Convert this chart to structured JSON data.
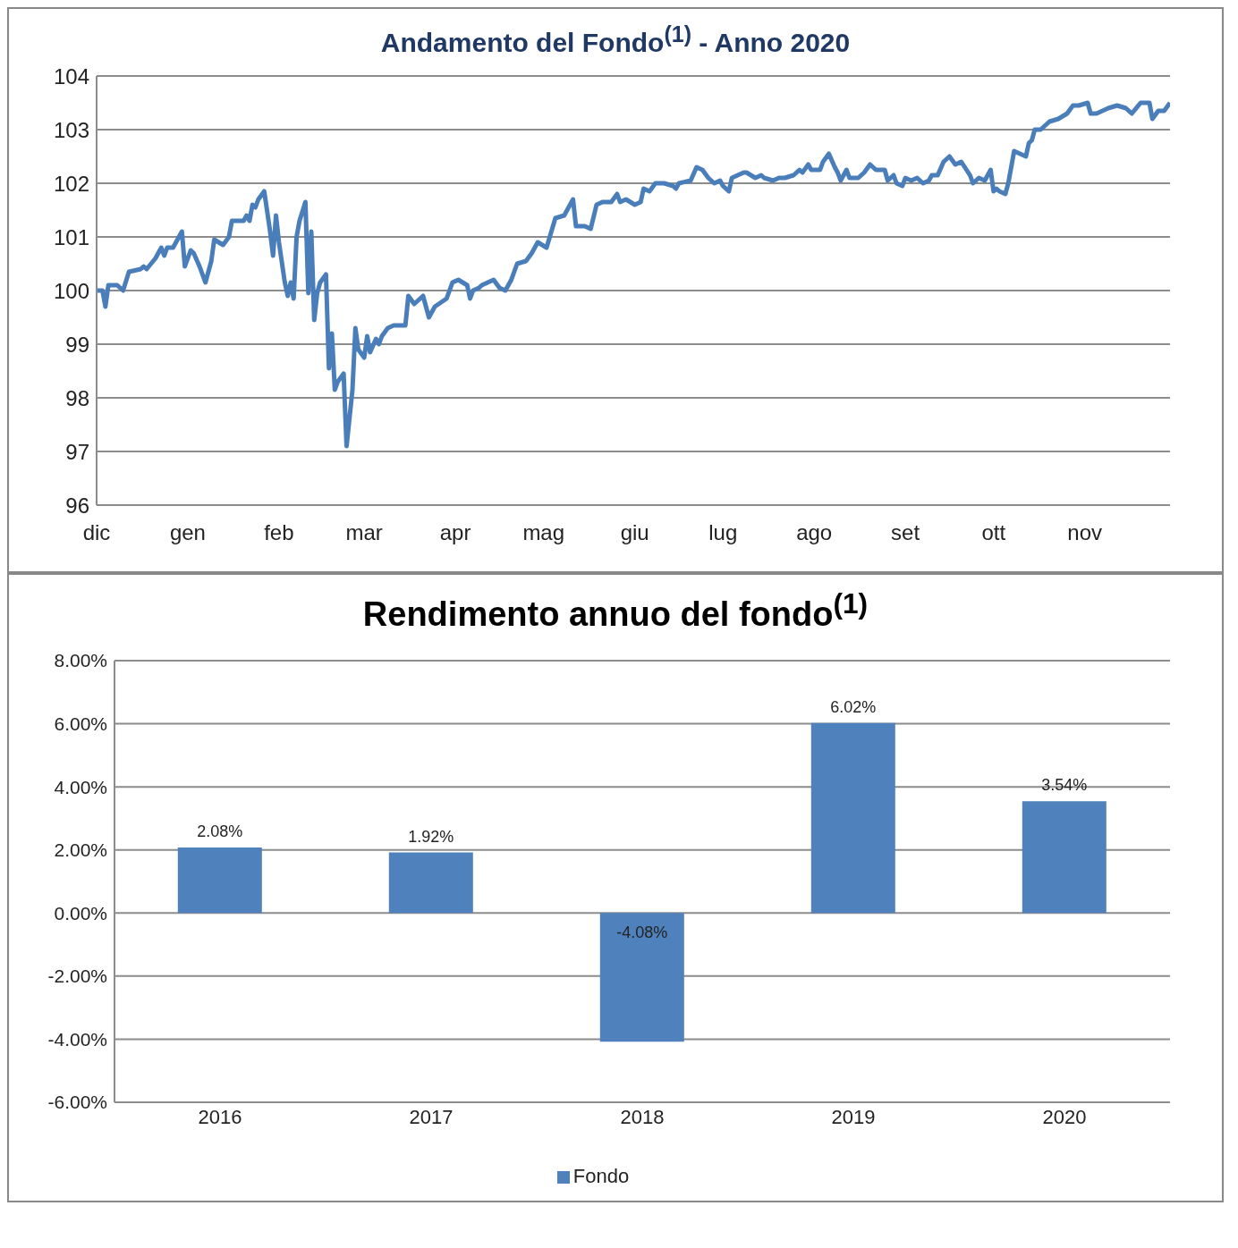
{
  "chart_data": [
    {
      "type": "line",
      "title": "Andamento del Fondo$^{(1)}$ - Anno 2020",
      "xlim": [
        "2019-12-01",
        "2020-11-30"
      ],
      "xticks": [
        {
          "value": "2019-12-01",
          "label": "dic"
        },
        {
          "value": "2020-01-01",
          "label": "gen"
        },
        {
          "value": "2020-02-01",
          "label": "feb"
        },
        {
          "value": "2020-03-01",
          "label": "mar"
        },
        {
          "value": "2020-04-01",
          "label": "apr"
        },
        {
          "value": "2020-05-01",
          "label": "mag"
        },
        {
          "value": "2020-06-01",
          "label": "giu"
        },
        {
          "value": "2020-07-01",
          "label": "lug"
        },
        {
          "value": "2020-08-01",
          "label": "ago"
        },
        {
          "value": "2020-09-01",
          "label": "set"
        },
        {
          "value": "2020-10-01",
          "label": "ott"
        },
        {
          "value": "2020-11-01",
          "label": "nov"
        }
      ],
      "ylim": [
        96,
        104
      ],
      "yticks": [
        96,
        97,
        98,
        99,
        100,
        101,
        102,
        103,
        104
      ],
      "grid": "y",
      "legend": false,
      "marker": "none",
      "line_style": "solid",
      "x": [
        "2019-12-01",
        "2019-12-03",
        "2019-12-04",
        "2019-12-05",
        "2019-12-08",
        "2019-12-10",
        "2019-12-12",
        "2019-12-16",
        "2019-12-17",
        "2019-12-18",
        "2019-12-21",
        "2019-12-23",
        "2019-12-24",
        "2019-12-25",
        "2019-12-27",
        "2019-12-29",
        "2019-12-30",
        "2019-12-31",
        "2020-01-02",
        "2020-01-03",
        "2020-01-05",
        "2020-01-07",
        "2020-01-09",
        "2020-01-10",
        "2020-01-13",
        "2020-01-15",
        "2020-01-16",
        "2020-01-18",
        "2020-01-20",
        "2020-01-21",
        "2020-01-22",
        "2020-01-23",
        "2020-01-24",
        "2020-01-25",
        "2020-01-27",
        "2020-01-29",
        "2020-01-30",
        "2020-01-31",
        "2020-02-01",
        "2020-02-03",
        "2020-02-04",
        "2020-02-05",
        "2020-02-06",
        "2020-02-07",
        "2020-02-08",
        "2020-02-10",
        "2020-02-11",
        "2020-02-12",
        "2020-02-13",
        "2020-02-14",
        "2020-02-15",
        "2020-02-17",
        "2020-02-18",
        "2020-02-19",
        "2020-02-20",
        "2020-02-21",
        "2020-02-23",
        "2020-02-24",
        "2020-02-26",
        "2020-02-27",
        "2020-02-28",
        "2020-03-01",
        "2020-03-02",
        "2020-03-03",
        "2020-03-05",
        "2020-03-06",
        "2020-03-07",
        "2020-03-09",
        "2020-03-11",
        "2020-03-15",
        "2020-03-16",
        "2020-03-18",
        "2020-03-20",
        "2020-03-21",
        "2020-03-23",
        "2020-03-25",
        "2020-03-29",
        "2020-03-31",
        "2020-04-02",
        "2020-04-05",
        "2020-04-06",
        "2020-04-07",
        "2020-04-09",
        "2020-04-10",
        "2020-04-14",
        "2020-04-16",
        "2020-04-18",
        "2020-04-20",
        "2020-04-22",
        "2020-04-25",
        "2020-04-27",
        "2020-04-29",
        "2020-05-02",
        "2020-05-05",
        "2020-05-08",
        "2020-05-11",
        "2020-05-12",
        "2020-05-15",
        "2020-05-17",
        "2020-05-19",
        "2020-05-21",
        "2020-05-24",
        "2020-05-26",
        "2020-05-27",
        "2020-05-29",
        "2020-06-01",
        "2020-06-03",
        "2020-06-04",
        "2020-06-06",
        "2020-06-08",
        "2020-06-11",
        "2020-06-14",
        "2020-06-15",
        "2020-06-16",
        "2020-06-20",
        "2020-06-22",
        "2020-06-24",
        "2020-06-26",
        "2020-06-28",
        "2020-06-30",
        "2020-07-01",
        "2020-07-03",
        "2020-07-04",
        "2020-07-06",
        "2020-07-08",
        "2020-07-09",
        "2020-07-12",
        "2020-07-14",
        "2020-07-15",
        "2020-07-18",
        "2020-07-20",
        "2020-07-22",
        "2020-07-25",
        "2020-07-27",
        "2020-07-28",
        "2020-07-30",
        "2020-07-31",
        "2020-08-03",
        "2020-08-04",
        "2020-08-06",
        "2020-08-08",
        "2020-08-09",
        "2020-08-10",
        "2020-08-12",
        "2020-08-13",
        "2020-08-16",
        "2020-08-18",
        "2020-08-20",
        "2020-08-22",
        "2020-08-25",
        "2020-08-26",
        "2020-08-28",
        "2020-08-29",
        "2020-08-31",
        "2020-09-01",
        "2020-09-03",
        "2020-09-05",
        "2020-09-07",
        "2020-09-09",
        "2020-09-10",
        "2020-09-12",
        "2020-09-14",
        "2020-09-16",
        "2020-09-18",
        "2020-09-20",
        "2020-09-23",
        "2020-09-24",
        "2020-09-26",
        "2020-09-28",
        "2020-09-30",
        "2020-10-01",
        "2020-10-02",
        "2020-10-03",
        "2020-10-05",
        "2020-10-06",
        "2020-10-08",
        "2020-10-12",
        "2020-10-13",
        "2020-10-14",
        "2020-10-15",
        "2020-10-17",
        "2020-10-20",
        "2020-10-23",
        "2020-10-26",
        "2020-10-28",
        "2020-10-30",
        "2020-11-02",
        "2020-11-03",
        "2020-11-05",
        "2020-11-09",
        "2020-11-12",
        "2020-11-15",
        "2020-11-17",
        "2020-11-20",
        "2020-11-23",
        "2020-11-24",
        "2020-11-26",
        "2020-11-28",
        "2020-11-30"
      ],
      "series": [
        {
          "color": "#4a7ebb",
          "values": [
            100.0,
            100.0,
            99.7,
            100.1,
            100.1,
            100.0,
            100.35,
            100.4,
            100.45,
            100.4,
            100.6,
            100.8,
            100.65,
            100.8,
            100.8,
            101.0,
            101.1,
            100.45,
            100.75,
            100.7,
            100.45,
            100.15,
            100.55,
            100.95,
            100.85,
            101.0,
            101.3,
            101.3,
            101.3,
            101.4,
            101.3,
            101.6,
            101.55,
            101.7,
            101.85,
            101.1,
            100.65,
            101.4,
            100.9,
            100.15,
            99.9,
            100.15,
            99.85,
            101.0,
            101.3,
            101.65,
            99.95,
            101.1,
            99.45,
            99.95,
            100.15,
            100.3,
            98.55,
            99.2,
            98.15,
            98.3,
            98.45,
            97.1,
            98.15,
            99.3,
            98.9,
            98.75,
            99.15,
            98.85,
            99.1,
            99.0,
            99.15,
            99.3,
            99.35,
            99.35,
            99.9,
            99.75,
            99.85,
            99.9,
            99.5,
            99.7,
            99.85,
            100.15,
            100.2,
            100.1,
            99.85,
            100.0,
            100.05,
            100.1,
            100.2,
            100.05,
            100.0,
            100.2,
            100.5,
            100.55,
            100.7,
            100.9,
            100.8,
            101.35,
            101.4,
            101.7,
            101.2,
            101.2,
            101.15,
            101.6,
            101.65,
            101.65,
            101.8,
            101.65,
            101.7,
            101.6,
            101.65,
            101.9,
            101.85,
            102.0,
            102.0,
            101.95,
            101.9,
            102.0,
            102.05,
            102.3,
            102.25,
            102.1,
            102.0,
            102.05,
            101.95,
            101.85,
            102.1,
            102.15,
            102.2,
            102.2,
            102.1,
            102.15,
            102.1,
            102.05,
            102.1,
            102.1,
            102.15,
            102.25,
            102.2,
            102.35,
            102.25,
            102.25,
            102.4,
            102.55,
            102.3,
            102.2,
            102.05,
            102.25,
            102.1,
            102.1,
            102.2,
            102.35,
            102.25,
            102.25,
            102.05,
            102.15,
            102.0,
            101.95,
            102.1,
            102.05,
            102.1,
            102.0,
            102.05,
            102.15,
            102.15,
            102.4,
            102.5,
            102.35,
            102.4,
            102.15,
            102.0,
            102.1,
            102.05,
            102.25,
            101.85,
            101.9,
            101.85,
            101.8,
            102.0,
            102.6,
            102.5,
            102.75,
            102.8,
            103.0,
            103.0,
            103.15,
            103.2,
            103.3,
            103.45,
            103.45,
            103.5,
            103.3,
            103.3,
            103.4,
            103.45,
            103.4,
            103.3,
            103.5,
            103.5,
            103.2,
            103.35,
            103.35,
            103.5
          ]
        }
      ]
    },
    {
      "type": "bar",
      "title": "Rendimento annuo del fondo$^{(1)}$",
      "categories": [
        "2016",
        "2017",
        "2018",
        "2019",
        "2020"
      ],
      "ylim": [
        -6,
        8
      ],
      "yticks": [
        {
          "value": -6,
          "label": "-6.00%"
        },
        {
          "value": -4,
          "label": "-4.00%"
        },
        {
          "value": -2,
          "label": "-2.00%"
        },
        {
          "value": 0,
          "label": "0.00%"
        },
        {
          "value": 2,
          "label": "2.00%"
        },
        {
          "value": 4,
          "label": "4.00%"
        },
        {
          "value": 6,
          "label": "6.00%"
        },
        {
          "value": 8,
          "label": "8.00%"
        }
      ],
      "grid": "y",
      "legend": "bottom",
      "series": [
        {
          "name": "Fondo",
          "color": "#4f81bd",
          "values": [
            2.08,
            1.92,
            -4.08,
            6.02,
            3.54
          ],
          "value_labels": [
            "2.08%",
            "1.92%",
            "-4.08%",
            "6.02%",
            "3.54%"
          ]
        }
      ]
    }
  ]
}
